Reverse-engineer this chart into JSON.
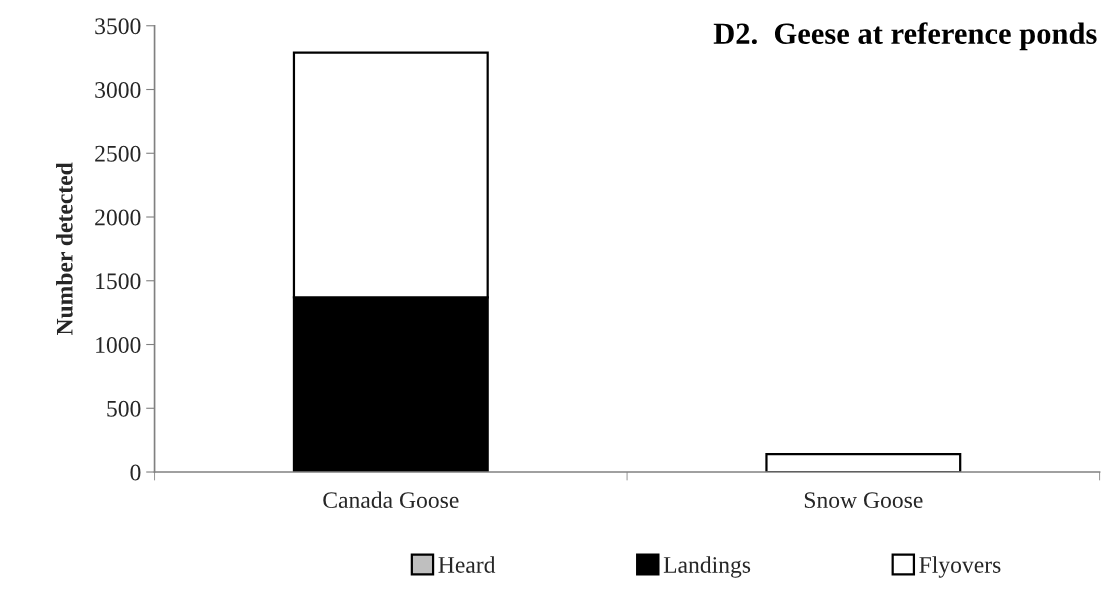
{
  "chart_data": {
    "type": "bar",
    "title": "D2.  Geese at reference ponds",
    "ylabel": "Number detected",
    "categories": [
      "Canada Goose",
      "Snow Goose"
    ],
    "stacked": true,
    "series": [
      {
        "name": "Heard",
        "color": "#bfbfbf",
        "values": [
          0,
          0
        ]
      },
      {
        "name": "Landings",
        "color": "#000000",
        "values": [
          1370,
          0
        ]
      },
      {
        "name": "Flyovers",
        "color": "#ffffff",
        "values": [
          1920,
          140
        ]
      }
    ],
    "ylim": [
      0,
      3500
    ],
    "yticks": [
      0,
      500,
      1000,
      1500,
      2000,
      2500,
      3000,
      3500
    ],
    "grid": false,
    "legend": "bottom"
  }
}
